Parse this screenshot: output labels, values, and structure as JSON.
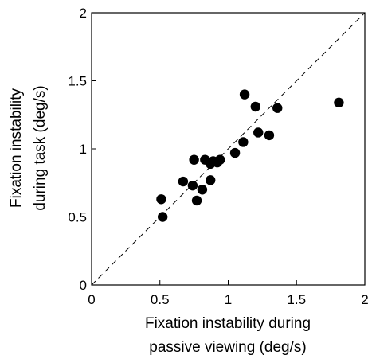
{
  "chart_data": {
    "type": "scatter",
    "xlabel": [
      "Fixation instability during",
      "passive viewing (deg/s)"
    ],
    "ylabel": [
      "Fixation instability",
      "during task (deg/s)"
    ],
    "xlim": [
      0,
      2
    ],
    "ylim": [
      0,
      2
    ],
    "xticks": [
      "0",
      "0.5",
      "1",
      "1.5",
      "2"
    ],
    "yticks": [
      "0",
      "0.5",
      "1",
      "1.5",
      "2"
    ],
    "diagonal": "y = x (dashed)",
    "grid": false,
    "points": [
      {
        "x": 0.51,
        "y": 0.63
      },
      {
        "x": 0.52,
        "y": 0.5
      },
      {
        "x": 0.67,
        "y": 0.76
      },
      {
        "x": 0.74,
        "y": 0.73
      },
      {
        "x": 0.75,
        "y": 0.92
      },
      {
        "x": 0.77,
        "y": 0.62
      },
      {
        "x": 0.81,
        "y": 0.7
      },
      {
        "x": 0.83,
        "y": 0.92
      },
      {
        "x": 0.87,
        "y": 0.77
      },
      {
        "x": 0.87,
        "y": 0.89
      },
      {
        "x": 0.89,
        "y": 0.91
      },
      {
        "x": 0.92,
        "y": 0.9
      },
      {
        "x": 0.94,
        "y": 0.92
      },
      {
        "x": 1.05,
        "y": 0.97
      },
      {
        "x": 1.11,
        "y": 1.05
      },
      {
        "x": 1.12,
        "y": 1.4
      },
      {
        "x": 1.2,
        "y": 1.31
      },
      {
        "x": 1.22,
        "y": 1.12
      },
      {
        "x": 1.3,
        "y": 1.1
      },
      {
        "x": 1.36,
        "y": 1.3
      },
      {
        "x": 1.81,
        "y": 1.34
      }
    ]
  }
}
